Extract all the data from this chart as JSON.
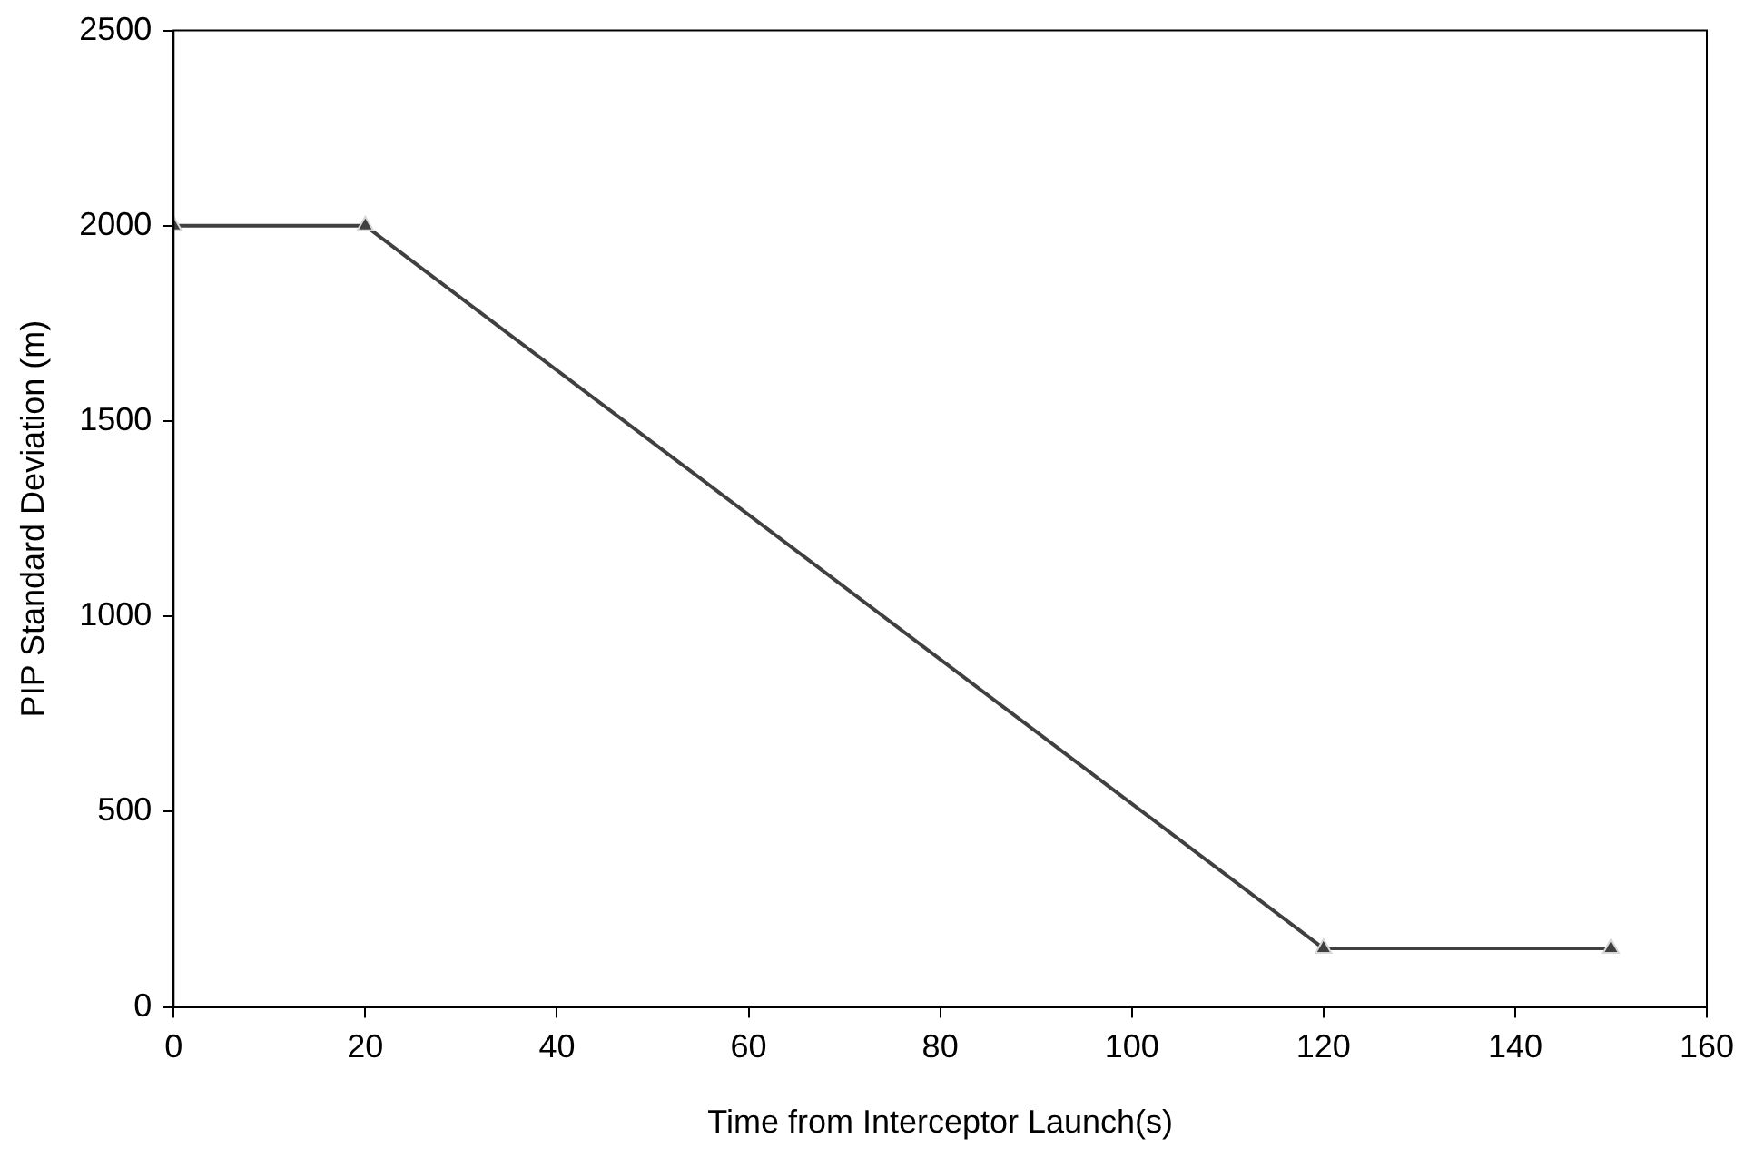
{
  "chart_data": {
    "type": "line",
    "xlabel": "Time from Interceptor Launch(s)",
    "ylabel": "PIP Standard Deviation (m)",
    "x": [
      0,
      20,
      120,
      150
    ],
    "series": [
      {
        "color": "#404040",
        "values": [
          2000,
          2000,
          150,
          150
        ]
      }
    ],
    "xlim": [
      0,
      160
    ],
    "xticks": [
      0,
      20,
      40,
      60,
      80,
      100,
      120,
      140,
      160
    ],
    "ylim": [
      0,
      2500
    ],
    "yticks": [
      0,
      500,
      1000,
      1500,
      2000,
      2500
    ],
    "grid": false,
    "legend": false,
    "marker": "triangle",
    "line_style": "solid"
  }
}
